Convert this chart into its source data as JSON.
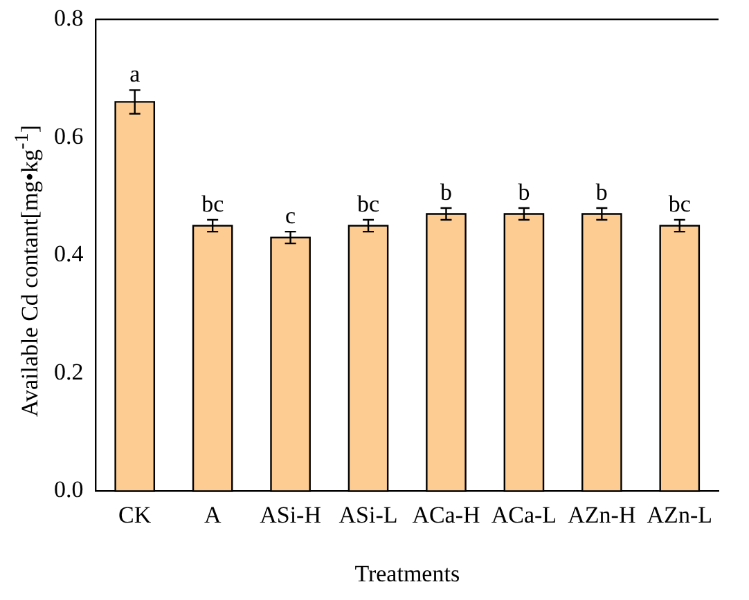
{
  "chart_data": {
    "type": "bar",
    "xlabel": "Treatments",
    "ylabel": "Available Cd contant[mg•kg$^{-1}$]",
    "categories": [
      "CK",
      "A",
      "ASi-H",
      "ASi-L",
      "ACa-H",
      "ACa-L",
      "AZn-H",
      "AZn-L"
    ],
    "values": [
      0.66,
      0.45,
      0.43,
      0.45,
      0.47,
      0.47,
      0.47,
      0.45
    ],
    "errors": [
      0.02,
      0.01,
      0.01,
      0.01,
      0.01,
      0.01,
      0.01,
      0.01
    ],
    "color": "#fdcc92",
    "ylim": [
      0,
      0.8
    ],
    "yticks": [
      {
        "value": 0,
        "label": "0.0"
      },
      {
        "value": 0.2,
        "label": "0.2"
      },
      {
        "value": 0.4,
        "label": "0.4"
      },
      {
        "value": 0.6,
        "label": "0.6"
      },
      {
        "value": 0.8,
        "label": "0.8"
      }
    ],
    "grid": false,
    "legend": false,
    "annotations": [
      {
        "text": "a",
        "x": "CK",
        "y": 0.68
      },
      {
        "text": "bc",
        "x": "A",
        "y": 0.46
      },
      {
        "text": "c",
        "x": "ASi-H",
        "y": 0.44
      },
      {
        "text": "bc",
        "x": "ASi-L",
        "y": 0.46
      },
      {
        "text": "b",
        "x": "ACa-H",
        "y": 0.48
      },
      {
        "text": "b",
        "x": "ACa-L",
        "y": 0.48
      },
      {
        "text": "b",
        "x": "AZn-H",
        "y": 0.48
      },
      {
        "text": "bc",
        "x": "AZn-L",
        "y": 0.46
      }
    ]
  }
}
